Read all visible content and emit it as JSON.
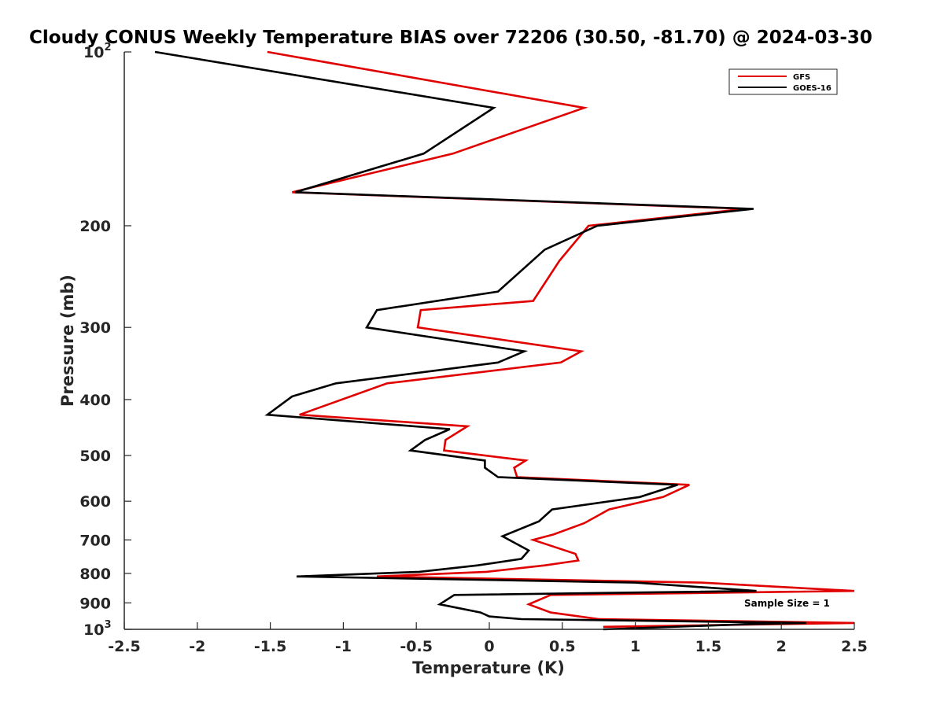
{
  "chart_data": {
    "type": "line",
    "title": "Cloudy CONUS Weekly Temperature BIAS over 72206 (30.50, -81.70) @ 2024-03-30",
    "xlabel": "Temperature (K)",
    "ylabel": "Pressure (mb)",
    "xlim": [
      -2.5,
      2.5
    ],
    "ylim": [
      100,
      1000
    ],
    "yscale": "log",
    "y_reversed": true,
    "x_ticks": [
      "-2.5",
      "-2",
      "-1.5",
      "-1",
      "-0.5",
      "0",
      "0.5",
      "1",
      "1.5",
      "2",
      "2.5"
    ],
    "x_tick_values": [
      -2.5,
      -2,
      -1.5,
      -1,
      -0.5,
      0,
      0.5,
      1,
      1.5,
      2,
      2.5
    ],
    "y_ticks": [
      {
        "value": 100,
        "base": "10",
        "exp": "2"
      },
      {
        "value": 200,
        "label": "200"
      },
      {
        "value": 300,
        "label": "300"
      },
      {
        "value": 400,
        "label": "400"
      },
      {
        "value": 500,
        "label": "500"
      },
      {
        "value": 600,
        "label": "600"
      },
      {
        "value": 700,
        "label": "700"
      },
      {
        "value": 800,
        "label": "800"
      },
      {
        "value": 900,
        "label": "900"
      },
      {
        "value": 1000,
        "base": "10",
        "exp": "3"
      }
    ],
    "legend_location": "top-right",
    "annotation": "Sample Size = 1",
    "series": [
      {
        "name": "GFS",
        "color": "#e00000",
        "points": [
          [
            -1.52,
            100
          ],
          [
            0.65,
            125
          ],
          [
            -0.25,
            150
          ],
          [
            -1.35,
            175
          ],
          [
            1.75,
            187
          ],
          [
            0.68,
            200
          ],
          [
            0.48,
            230
          ],
          [
            0.3,
            270
          ],
          [
            -0.47,
            280
          ],
          [
            -0.49,
            300
          ],
          [
            0.63,
            330
          ],
          [
            0.49,
            345
          ],
          [
            -0.7,
            375
          ],
          [
            -1.3,
            425
          ],
          [
            -0.15,
            445
          ],
          [
            -0.3,
            470
          ],
          [
            -0.31,
            490
          ],
          [
            0.25,
            510
          ],
          [
            0.17,
            525
          ],
          [
            0.19,
            545
          ],
          [
            1.37,
            562
          ],
          [
            1.19,
            590
          ],
          [
            0.82,
            620
          ],
          [
            0.65,
            655
          ],
          [
            0.44,
            685
          ],
          [
            0.3,
            700
          ],
          [
            0.59,
            740
          ],
          [
            0.61,
            760
          ],
          [
            0.38,
            775
          ],
          [
            -0.02,
            795
          ],
          [
            -0.77,
            810
          ],
          [
            1.45,
            830
          ],
          [
            2.5,
            858
          ],
          [
            0.42,
            872
          ],
          [
            0.27,
            905
          ],
          [
            0.42,
            935
          ],
          [
            0.75,
            960
          ],
          [
            2.5,
            975
          ],
          [
            0.78,
            990
          ]
        ]
      },
      {
        "name": "GOES-16",
        "color": "#000000",
        "points": [
          [
            -2.29,
            100
          ],
          [
            0.03,
            125
          ],
          [
            -0.45,
            150
          ],
          [
            -1.33,
            175
          ],
          [
            1.81,
            187
          ],
          [
            0.74,
            200
          ],
          [
            0.38,
            220
          ],
          [
            0.06,
            260
          ],
          [
            -0.77,
            280
          ],
          [
            -0.84,
            300
          ],
          [
            0.24,
            330
          ],
          [
            0.06,
            345
          ],
          [
            -1.05,
            375
          ],
          [
            -1.35,
            395
          ],
          [
            -1.52,
            425
          ],
          [
            -0.27,
            450
          ],
          [
            -0.44,
            470
          ],
          [
            -0.54,
            490
          ],
          [
            -0.03,
            510
          ],
          [
            -0.03,
            525
          ],
          [
            0.06,
            545
          ],
          [
            1.29,
            562
          ],
          [
            1.03,
            590
          ],
          [
            0.43,
            620
          ],
          [
            0.34,
            650
          ],
          [
            0.09,
            690
          ],
          [
            0.27,
            730
          ],
          [
            0.22,
            755
          ],
          [
            -0.08,
            775
          ],
          [
            -0.48,
            795
          ],
          [
            -1.32,
            810
          ],
          [
            1.0,
            830
          ],
          [
            1.83,
            858
          ],
          [
            -0.24,
            872
          ],
          [
            -0.34,
            905
          ],
          [
            -0.06,
            935
          ],
          [
            0.0,
            950
          ],
          [
            0.22,
            960
          ],
          [
            2.17,
            975
          ],
          [
            1.75,
            980
          ],
          [
            0.78,
            1000
          ]
        ]
      }
    ]
  }
}
